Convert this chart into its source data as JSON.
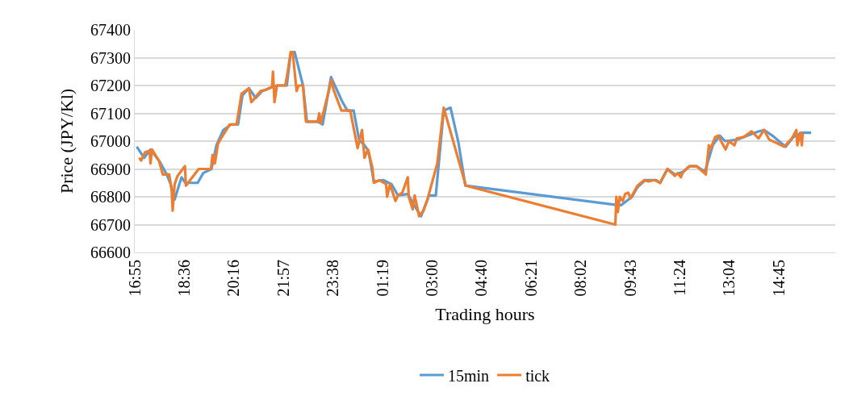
{
  "chart_data": {
    "type": "line",
    "xlabel": "Trading hours",
    "ylabel": "Price (JPY/Kl)",
    "xlim": [
      "2000-01-01T16:55",
      "2000-01-02T16:39"
    ],
    "xticks": [
      {
        "value": "2000-01-01T16:55",
        "label": "16:55"
      },
      {
        "value": "2000-01-01T18:36",
        "label": "18:36"
      },
      {
        "value": "2000-01-01T20:16",
        "label": "20:16"
      },
      {
        "value": "2000-01-01T21:57",
        "label": "21:57"
      },
      {
        "value": "2000-01-01T23:38",
        "label": "23:38"
      },
      {
        "value": "2000-01-02T01:19",
        "label": "01:19"
      },
      {
        "value": "2000-01-02T03:00",
        "label": "03:00"
      },
      {
        "value": "2000-01-02T04:40",
        "label": "04:40"
      },
      {
        "value": "2000-01-02T06:21",
        "label": "06:21"
      },
      {
        "value": "2000-01-02T08:02",
        "label": "08:02"
      },
      {
        "value": "2000-01-02T09:43",
        "label": "09:43"
      },
      {
        "value": "2000-01-02T11:24",
        "label": "11:24"
      },
      {
        "value": "2000-01-02T13:04",
        "label": "13:04"
      },
      {
        "value": "2000-01-02T14:45",
        "label": "14:45"
      }
    ],
    "ylim": [
      66600,
      67400
    ],
    "yticks": [
      66600,
      66700,
      66800,
      66900,
      67000,
      67100,
      67200,
      67300,
      67400
    ],
    "grid": "y",
    "legend": "bottom",
    "marker": "none",
    "line_style": "solid",
    "series": [
      {
        "name": "15min",
        "color": "#5b9bd5",
        "x": [
          "2000-01-01T16:59",
          "2000-01-01T17:14",
          "2000-01-01T17:27",
          "2000-01-01T17:46",
          "2000-01-01T18:00",
          "2000-01-01T18:08",
          "2000-01-01T18:16",
          "2000-01-01T18:30",
          "2000-01-01T18:38",
          "2000-01-01T19:03",
          "2000-01-01T19:14",
          "2000-01-01T19:31",
          "2000-01-01T19:41",
          "2000-01-01T19:55",
          "2000-01-01T20:11",
          "2000-01-01T20:25",
          "2000-01-01T20:34",
          "2000-01-01T20:47",
          "2000-01-01T21:01",
          "2000-01-01T21:14",
          "2000-01-01T21:28",
          "2000-01-01T21:44",
          "2000-01-01T22:04",
          "2000-01-01T22:12",
          "2000-01-01T22:20",
          "2000-01-01T22:37",
          "2000-01-01T22:45",
          "2000-01-01T23:07",
          "2000-01-01T23:17",
          "2000-01-01T23:34",
          "2000-01-01T23:56",
          "2000-01-02T00:07",
          "2000-01-02T00:20",
          "2000-01-02T00:31",
          "2000-01-02T00:42",
          "2000-01-02T00:50",
          "2000-01-02T01:01",
          "2000-01-02T01:20",
          "2000-01-02T01:37",
          "2000-01-02T01:50",
          "2000-01-02T02:10",
          "2000-01-02T02:23",
          "2000-01-02T02:37",
          "2000-01-02T02:50",
          "2000-01-02T02:53",
          "2000-01-02T03:07",
          "2000-01-02T03:23",
          "2000-01-02T03:37",
          "2000-01-02T03:53",
          "2000-01-02T04:07",
          "2000-01-02T09:16",
          "2000-01-02T09:24",
          "2000-01-02T09:46",
          "2000-01-02T09:57",
          "2000-01-02T10:13",
          "2000-01-02T10:35",
          "2000-01-02T10:43",
          "2000-01-02T10:58",
          "2000-01-02T11:13",
          "2000-01-02T11:30",
          "2000-01-02T11:43",
          "2000-01-02T11:57",
          "2000-01-02T12:14",
          "2000-01-02T12:30",
          "2000-01-02T12:44",
          "2000-01-02T12:55",
          "2000-01-02T13:19",
          "2000-01-02T13:41",
          "2000-01-02T14:03",
          "2000-01-02T14:14",
          "2000-01-02T14:31",
          "2000-01-02T14:58",
          "2000-01-02T15:14",
          "2000-01-02T15:31",
          "2000-01-02T15:50"
        ],
        "values": [
          66980,
          66940,
          66970,
          66925,
          66880,
          66845,
          66790,
          66870,
          66850,
          66850,
          66885,
          66900,
          66985,
          67040,
          67060,
          67060,
          67165,
          67190,
          67155,
          67180,
          67190,
          67200,
          67200,
          67315,
          67320,
          67200,
          67070,
          67070,
          67060,
          67230,
          67145,
          67110,
          67110,
          67005,
          66985,
          66965,
          66855,
          66860,
          66845,
          66805,
          66810,
          66770,
          66730,
          66790,
          66805,
          66805,
          67110,
          67120,
          66995,
          66840,
          66770,
          66770,
          66800,
          66835,
          66860,
          66860,
          66850,
          66900,
          66880,
          66890,
          66910,
          66910,
          66890,
          66985,
          67020,
          67000,
          67005,
          67020,
          67035,
          67040,
          67020,
          66980,
          67015,
          67030,
          67030
        ]
      },
      {
        "name": "tick",
        "color": "#ed7d31",
        "x": [
          "2000-01-01T17:04",
          "2000-01-01T17:08",
          "2000-01-01T17:16",
          "2000-01-01T17:25",
          "2000-01-01T17:27",
          "2000-01-01T17:30",
          "2000-01-01T17:44",
          "2000-01-01T17:52",
          "2000-01-01T17:58",
          "2000-01-01T18:05",
          "2000-01-01T18:10",
          "2000-01-01T18:12",
          "2000-01-01T18:16",
          "2000-01-01T18:22",
          "2000-01-01T18:37",
          "2000-01-01T18:39",
          "2000-01-01T19:05",
          "2000-01-01T19:30",
          "2000-01-01T19:33",
          "2000-01-01T19:38",
          "2000-01-01T19:44",
          "2000-01-01T19:52",
          "2000-01-01T20:08",
          "2000-01-01T20:22",
          "2000-01-01T20:32",
          "2000-01-01T20:47",
          "2000-01-01T20:52",
          "2000-01-01T21:11",
          "2000-01-01T21:22",
          "2000-01-01T21:34",
          "2000-01-01T21:36",
          "2000-01-01T21:39",
          "2000-01-01T21:44",
          "2000-01-01T22:01",
          "2000-01-01T22:06",
          "2000-01-01T22:12",
          "2000-01-01T22:16",
          "2000-01-01T22:24",
          "2000-01-01T22:28",
          "2000-01-01T22:37",
          "2000-01-01T22:43",
          "2000-01-01T23:07",
          "2000-01-01T23:10",
          "2000-01-01T23:13",
          "2000-01-01T23:35",
          "2000-01-01T23:39",
          "2000-01-01T23:55",
          "2000-01-02T00:13",
          "2000-01-02T00:28",
          "2000-01-02T00:37",
          "2000-01-02T00:42",
          "2000-01-02T00:49",
          "2000-01-02T00:58",
          "2000-01-02T01:01",
          "2000-01-02T01:12",
          "2000-01-02T01:26",
          "2000-01-02T01:28",
          "2000-01-02T01:34",
          "2000-01-02T01:45",
          "2000-01-02T01:50",
          "2000-01-02T01:59",
          "2000-01-02T02:10",
          "2000-01-02T02:12",
          "2000-01-02T02:20",
          "2000-01-02T02:24",
          "2000-01-02T02:33",
          "2000-01-02T02:42",
          "2000-01-02T02:50",
          "2000-01-02T03:10",
          "2000-01-02T03:23",
          "2000-01-02T04:08",
          "2000-01-02T09:12",
          "2000-01-02T09:14",
          "2000-01-02T09:17",
          "2000-01-02T09:21",
          "2000-01-02T09:27",
          "2000-01-02T09:32",
          "2000-01-02T09:38",
          "2000-01-02T09:43",
          "2000-01-02T09:57",
          "2000-01-02T10:11",
          "2000-01-02T10:19",
          "2000-01-02T10:32",
          "2000-01-02T10:43",
          "2000-01-02T10:58",
          "2000-01-02T11:13",
          "2000-01-02T11:19",
          "2000-01-02T11:25",
          "2000-01-02T11:30",
          "2000-01-02T11:43",
          "2000-01-02T11:57",
          "2000-01-02T12:16",
          "2000-01-02T12:22",
          "2000-01-02T12:25",
          "2000-01-02T12:35",
          "2000-01-02T12:41",
          "2000-01-02T12:47",
          "2000-01-02T12:56",
          "2000-01-02T13:03",
          "2000-01-02T13:14",
          "2000-01-02T13:19",
          "2000-01-02T13:33",
          "2000-01-02T13:49",
          "2000-01-02T14:03",
          "2000-01-02T14:14",
          "2000-01-02T14:25",
          "2000-01-02T14:38",
          "2000-01-02T14:55",
          "2000-01-02T15:11",
          "2000-01-02T15:20",
          "2000-01-02T15:22",
          "2000-01-02T15:28",
          "2000-01-02T15:31",
          "2000-01-02T15:33"
        ],
        "values": [
          66940,
          66930,
          66960,
          66965,
          66920,
          66970,
          66930,
          66880,
          66880,
          66880,
          66825,
          66750,
          66845,
          66875,
          66910,
          66840,
          66900,
          66900,
          66950,
          66920,
          66990,
          67015,
          67060,
          67060,
          67170,
          67190,
          67140,
          67180,
          67185,
          67195,
          67250,
          67140,
          67200,
          67200,
          67250,
          67320,
          67320,
          67180,
          67200,
          67200,
          67070,
          67070,
          67100,
          67065,
          67220,
          67185,
          67110,
          67110,
          66975,
          67040,
          66940,
          66970,
          66905,
          66850,
          66860,
          66845,
          66800,
          66845,
          66785,
          66805,
          66815,
          66870,
          66800,
          66755,
          66805,
          66730,
          66750,
          66790,
          66920,
          67120,
          66840,
          66700,
          66800,
          66745,
          66800,
          66785,
          66810,
          66815,
          66795,
          66840,
          66860,
          66855,
          66860,
          66850,
          66900,
          66875,
          66885,
          66870,
          66890,
          66910,
          66910,
          66880,
          66985,
          66970,
          67015,
          67020,
          67000,
          66970,
          67000,
          66985,
          67010,
          67015,
          67035,
          67010,
          67040,
          67005,
          66995,
          66980,
          67010,
          67040,
          66985,
          67030,
          66985,
          67030
        ]
      }
    ]
  }
}
